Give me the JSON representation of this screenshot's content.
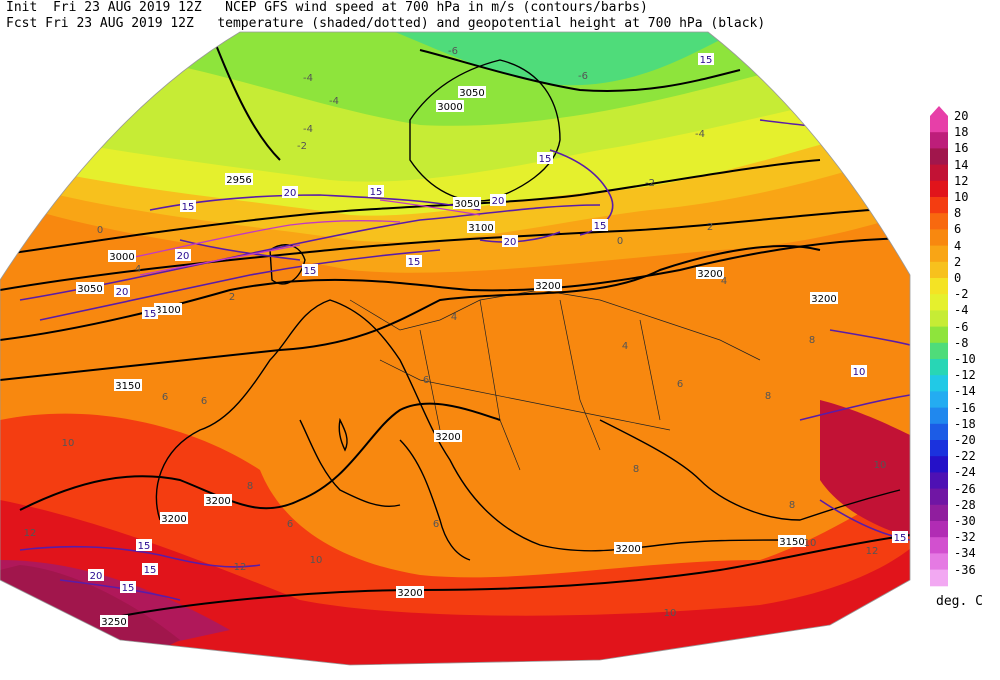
{
  "header": {
    "line1": "Init  Fri 23 AUG 2019 12Z   NCEP GFS wind speed at 700 hPa in m/s (contours/barbs)",
    "line2": "Fcst Fri 23 AUG 2019 12Z   temperature (shaded/dotted) and geopotential height at 700 hPa (black)"
  },
  "colorbar": {
    "units": "deg. C",
    "levels": [
      "20",
      "18",
      "16",
      "14",
      "12",
      "10",
      "8",
      "6",
      "4",
      "2",
      "0",
      "-2",
      "-4",
      "-6",
      "-8",
      "-10",
      "-12",
      "-14",
      "-16",
      "-18",
      "-20",
      "-22",
      "-24",
      "-26",
      "-28",
      "-30",
      "-32",
      "-34",
      "-36"
    ],
    "colors": [
      "#e73fa8",
      "#bd1e7a",
      "#a1164c",
      "#c21235",
      "#e1141b",
      "#f43d11",
      "#f8690f",
      "#f8880f",
      "#f9a515",
      "#f7c11d",
      "#f4e324",
      "#e5f02d",
      "#c6ec35",
      "#8ee43c",
      "#4fdc7a",
      "#28d6b5",
      "#21c9e6",
      "#24acf1",
      "#2088ee",
      "#1c5ce6",
      "#1b32dd",
      "#2511c8",
      "#4e11b4",
      "#7016a4",
      "#901e9e",
      "#b12cb4",
      "#d250cf",
      "#e57ae3",
      "#f2a8f2"
    ]
  },
  "height_labels": [
    "3050",
    "3000",
    "2956",
    "3050",
    "3100",
    "3000",
    "3050",
    "3100",
    "3150",
    "3200",
    "3200",
    "3200",
    "3200",
    "3200",
    "3150",
    "3200",
    "3250",
    "3200",
    "3200"
  ],
  "wind_labels": [
    "15",
    "15",
    "20",
    "20",
    "15",
    "15",
    "20",
    "15",
    "20",
    "15",
    "15",
    "15",
    "20",
    "15",
    "15",
    "20",
    "15",
    "15",
    "10"
  ],
  "temp_labels": [
    "-6",
    "-6",
    "-4",
    "-4",
    "-2",
    "-4",
    "-4",
    "-2",
    "0",
    "0",
    "2",
    "2",
    "4",
    "4",
    "4",
    "6",
    "6",
    "6",
    "6",
    "8",
    "8",
    "8",
    "8",
    "10",
    "10",
    "10",
    "10",
    "12",
    "12",
    "10",
    "12",
    "4",
    "6",
    "8",
    "6"
  ]
}
